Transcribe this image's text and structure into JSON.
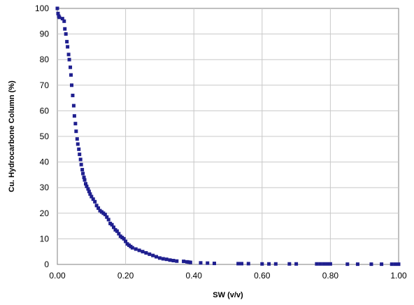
{
  "chart_data": {
    "type": "scatter",
    "title": "",
    "xlabel": "SW (v/v)",
    "ylabel": "Cu. Hydrocarbone Column  (%)",
    "xlim": [
      0,
      1
    ],
    "ylim": [
      0,
      100
    ],
    "grid": true,
    "legend": "none",
    "marker_color": "#1f1f8f",
    "x_ticks": [
      "0.00",
      "0.20",
      "0.40",
      "0.60",
      "0.80",
      "1.00"
    ],
    "y_ticks": [
      "0",
      "10",
      "20",
      "30",
      "40",
      "50",
      "60",
      "70",
      "80",
      "90",
      "100"
    ],
    "series": [
      {
        "points": [
          [
            0.0,
            100
          ],
          [
            0.002,
            98
          ],
          [
            0.004,
            97
          ],
          [
            0.006,
            96.5
          ],
          [
            0.015,
            96
          ],
          [
            0.02,
            95
          ],
          [
            0.022,
            92
          ],
          [
            0.025,
            90
          ],
          [
            0.028,
            87
          ],
          [
            0.03,
            85
          ],
          [
            0.033,
            82
          ],
          [
            0.035,
            80
          ],
          [
            0.038,
            77
          ],
          [
            0.04,
            74
          ],
          [
            0.042,
            70
          ],
          [
            0.045,
            66
          ],
          [
            0.048,
            62
          ],
          [
            0.05,
            58
          ],
          [
            0.053,
            55
          ],
          [
            0.055,
            52
          ],
          [
            0.058,
            49
          ],
          [
            0.06,
            47
          ],
          [
            0.063,
            45
          ],
          [
            0.065,
            43
          ],
          [
            0.068,
            41
          ],
          [
            0.07,
            39
          ],
          [
            0.073,
            37
          ],
          [
            0.075,
            35.5
          ],
          [
            0.078,
            34
          ],
          [
            0.08,
            33
          ],
          [
            0.083,
            31.5
          ],
          [
            0.086,
            30.5
          ],
          [
            0.09,
            29.5
          ],
          [
            0.093,
            28.5
          ],
          [
            0.096,
            27.5
          ],
          [
            0.1,
            26.5
          ],
          [
            0.105,
            25.5
          ],
          [
            0.11,
            24.5
          ],
          [
            0.115,
            23
          ],
          [
            0.12,
            22
          ],
          [
            0.125,
            21
          ],
          [
            0.13,
            20.5
          ],
          [
            0.135,
            20
          ],
          [
            0.14,
            19.5
          ],
          [
            0.145,
            18.5
          ],
          [
            0.15,
            17.5
          ],
          [
            0.155,
            16
          ],
          [
            0.16,
            15.5
          ],
          [
            0.165,
            14.5
          ],
          [
            0.17,
            13.5
          ],
          [
            0.175,
            13
          ],
          [
            0.18,
            12
          ],
          [
            0.185,
            11
          ],
          [
            0.19,
            10.5
          ],
          [
            0.195,
            10
          ],
          [
            0.2,
            9
          ],
          [
            0.205,
            8
          ],
          [
            0.21,
            7.5
          ],
          [
            0.215,
            7
          ],
          [
            0.22,
            6.5
          ],
          [
            0.23,
            6
          ],
          [
            0.24,
            5.5
          ],
          [
            0.25,
            5
          ],
          [
            0.26,
            4.5
          ],
          [
            0.27,
            4
          ],
          [
            0.28,
            3.5
          ],
          [
            0.29,
            3
          ],
          [
            0.3,
            2.5
          ],
          [
            0.31,
            2.2
          ],
          [
            0.32,
            2
          ],
          [
            0.33,
            1.7
          ],
          [
            0.34,
            1.5
          ],
          [
            0.35,
            1.3
          ],
          [
            0.37,
            1.2
          ],
          [
            0.38,
            1
          ],
          [
            0.385,
            0.9
          ],
          [
            0.39,
            0.8
          ],
          [
            0.42,
            0.6
          ],
          [
            0.44,
            0.5
          ],
          [
            0.46,
            0.4
          ],
          [
            0.53,
            0.3
          ],
          [
            0.54,
            0.3
          ],
          [
            0.56,
            0.3
          ],
          [
            0.6,
            0.2
          ],
          [
            0.62,
            0.2
          ],
          [
            0.64,
            0.2
          ],
          [
            0.68,
            0.2
          ],
          [
            0.7,
            0.2
          ],
          [
            0.76,
            0.2
          ],
          [
            0.77,
            0.2
          ],
          [
            0.78,
            0.2
          ],
          [
            0.79,
            0.2
          ],
          [
            0.8,
            0.2
          ],
          [
            0.85,
            0.1
          ],
          [
            0.88,
            0.1
          ],
          [
            0.92,
            0.1
          ],
          [
            0.95,
            0.1
          ],
          [
            0.98,
            0.1
          ],
          [
            0.99,
            0.1
          ],
          [
            1.0,
            0.1
          ]
        ]
      }
    ]
  }
}
